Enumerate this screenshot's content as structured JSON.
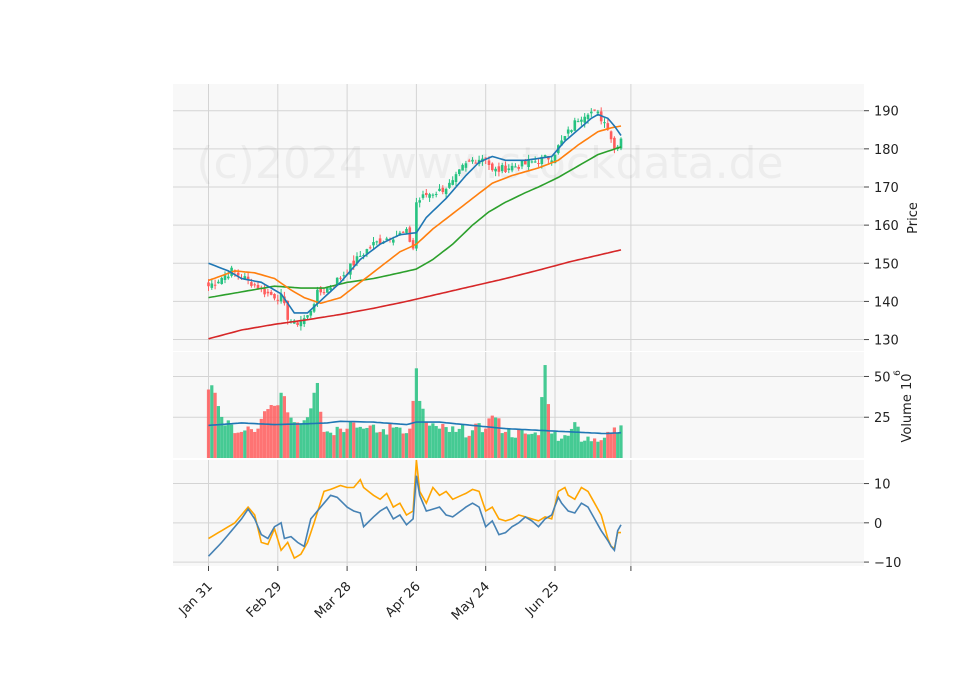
{
  "chart_data": {
    "type": "candlestick",
    "watermark": "(c)2024 www.stockdata.de",
    "x_ticks": [
      "Jan 31",
      "Feb 29",
      "Mar 28",
      "Apr 26",
      "May 24",
      "Jun 25"
    ],
    "x_tick_index": [
      0,
      21,
      42,
      63,
      84,
      105
    ],
    "n_bars": 126,
    "colors": {
      "up": "#26c281",
      "down": "#ff5c5c",
      "ma_fast": "#1f77b4",
      "ma_mid": "#ff7f0e",
      "ma_slow": "#2ca02c",
      "ma_long": "#d62728",
      "vol_ma": "#1f77b4",
      "macd": "#4682b4",
      "signal": "#ffa500"
    },
    "price_panel": {
      "ylabel": "Price",
      "ylim": [
        127,
        197
      ],
      "yticks": [
        130,
        140,
        150,
        160,
        170,
        180,
        190
      ],
      "anchors": [
        [
          0,
          144
        ],
        [
          7,
          148
        ],
        [
          13,
          145
        ],
        [
          18,
          142
        ],
        [
          22,
          141
        ],
        [
          24,
          136
        ],
        [
          26,
          134
        ],
        [
          30,
          136
        ],
        [
          33,
          142
        ],
        [
          37,
          144
        ],
        [
          42,
          148
        ],
        [
          46,
          152
        ],
        [
          50,
          155
        ],
        [
          55,
          157
        ],
        [
          60,
          158
        ],
        [
          62,
          154
        ],
        [
          63,
          166
        ],
        [
          66,
          168
        ],
        [
          70,
          169
        ],
        [
          74,
          171
        ],
        [
          77,
          175
        ],
        [
          80,
          177
        ],
        [
          84,
          178
        ],
        [
          86,
          174
        ],
        [
          90,
          175
        ],
        [
          96,
          176
        ],
        [
          100,
          177
        ],
        [
          104,
          178
        ],
        [
          108,
          183
        ],
        [
          112,
          188
        ],
        [
          115,
          190
        ],
        [
          118,
          189
        ],
        [
          121,
          186
        ],
        [
          123,
          180
        ],
        [
          125,
          183
        ]
      ],
      "ma_fast": [
        [
          0,
          150
        ],
        [
          6,
          148
        ],
        [
          10,
          146
        ],
        [
          16,
          145
        ],
        [
          22,
          142
        ],
        [
          26,
          137
        ],
        [
          30,
          137
        ],
        [
          35,
          141
        ],
        [
          40,
          145
        ],
        [
          46,
          151
        ],
        [
          52,
          155
        ],
        [
          58,
          157.5
        ],
        [
          63,
          158
        ],
        [
          66,
          162
        ],
        [
          72,
          167
        ],
        [
          78,
          173
        ],
        [
          82,
          176.5
        ],
        [
          86,
          178
        ],
        [
          90,
          177
        ],
        [
          96,
          177
        ],
        [
          100,
          177.5
        ],
        [
          104,
          178
        ],
        [
          108,
          182
        ],
        [
          112,
          185
        ],
        [
          116,
          188
        ],
        [
          118,
          189
        ],
        [
          121,
          188
        ],
        [
          123,
          186
        ],
        [
          125,
          183.5
        ]
      ],
      "ma_mid": [
        [
          0,
          145.5
        ],
        [
          8,
          148
        ],
        [
          14,
          147.5
        ],
        [
          20,
          146
        ],
        [
          25,
          143
        ],
        [
          29,
          141
        ],
        [
          34,
          139.5
        ],
        [
          40,
          141
        ],
        [
          46,
          145
        ],
        [
          52,
          149
        ],
        [
          58,
          153
        ],
        [
          63,
          155
        ],
        [
          68,
          159
        ],
        [
          74,
          163
        ],
        [
          80,
          167
        ],
        [
          86,
          171
        ],
        [
          92,
          173
        ],
        [
          100,
          175
        ],
        [
          106,
          177
        ],
        [
          112,
          181
        ],
        [
          118,
          184.5
        ],
        [
          122,
          185.5
        ],
        [
          125,
          186
        ]
      ],
      "ma_slow": [
        [
          0,
          141
        ],
        [
          10,
          142.5
        ],
        [
          20,
          144
        ],
        [
          28,
          143.5
        ],
        [
          35,
          143.5
        ],
        [
          42,
          145
        ],
        [
          50,
          146
        ],
        [
          58,
          147.5
        ],
        [
          63,
          148.5
        ],
        [
          68,
          151
        ],
        [
          74,
          155
        ],
        [
          80,
          160
        ],
        [
          85,
          163.5
        ],
        [
          90,
          166
        ],
        [
          96,
          168.5
        ],
        [
          100,
          170
        ],
        [
          106,
          172.5
        ],
        [
          112,
          175.5
        ],
        [
          118,
          178.5
        ],
        [
          125,
          180.5
        ]
      ],
      "ma_long": [
        [
          0,
          130.2
        ],
        [
          10,
          132.5
        ],
        [
          20,
          134
        ],
        [
          30,
          135.2
        ],
        [
          40,
          136.6
        ],
        [
          50,
          138.2
        ],
        [
          60,
          140
        ],
        [
          70,
          142
        ],
        [
          80,
          144
        ],
        [
          90,
          146
        ],
        [
          100,
          148.2
        ],
        [
          110,
          150.5
        ],
        [
          120,
          152.5
        ],
        [
          125,
          153.5
        ]
      ]
    },
    "volume_panel": {
      "ylabel": "Volume  10",
      "ylabel_exponent": "6",
      "ylim": [
        0,
        65
      ],
      "yticks": [
        25,
        50
      ],
      "vol_anchors": [
        [
          0,
          42
        ],
        [
          2,
          40
        ],
        [
          5,
          20
        ],
        [
          10,
          16
        ],
        [
          15,
          18
        ],
        [
          18,
          30
        ],
        [
          20,
          32
        ],
        [
          22,
          40
        ],
        [
          24,
          28
        ],
        [
          26,
          22
        ],
        [
          30,
          25
        ],
        [
          32,
          40
        ],
        [
          33,
          46
        ],
        [
          35,
          16
        ],
        [
          40,
          18
        ],
        [
          43,
          22
        ],
        [
          47,
          18
        ],
        [
          52,
          16
        ],
        [
          57,
          19
        ],
        [
          61,
          18
        ],
        [
          62,
          35
        ],
        [
          63,
          55
        ],
        [
          64,
          35
        ],
        [
          66,
          22
        ],
        [
          70,
          18
        ],
        [
          75,
          16
        ],
        [
          80,
          17
        ],
        [
          84,
          18
        ],
        [
          86,
          26
        ],
        [
          90,
          16
        ],
        [
          96,
          15
        ],
        [
          100,
          14
        ],
        [
          102,
          57
        ],
        [
          104,
          15
        ],
        [
          108,
          14
        ],
        [
          111,
          22
        ],
        [
          113,
          10
        ],
        [
          117,
          12
        ],
        [
          121,
          16
        ],
        [
          125,
          20
        ]
      ],
      "vol_ma": [
        [
          0,
          20
        ],
        [
          10,
          21.5
        ],
        [
          20,
          20.5
        ],
        [
          30,
          21
        ],
        [
          36,
          21.5
        ],
        [
          40,
          22.5
        ],
        [
          50,
          22
        ],
        [
          60,
          20.5
        ],
        [
          63,
          22
        ],
        [
          70,
          22
        ],
        [
          80,
          20
        ],
        [
          90,
          18
        ],
        [
          100,
          17
        ],
        [
          110,
          16
        ],
        [
          120,
          15
        ],
        [
          125,
          15.5
        ]
      ]
    },
    "macd_panel": {
      "ylim": [
        -11,
        16
      ],
      "yticks": [
        -10,
        0,
        10
      ],
      "macd": [
        [
          0,
          -8.5
        ],
        [
          4,
          -5
        ],
        [
          8,
          -1
        ],
        [
          10,
          1
        ],
        [
          12,
          3.5
        ],
        [
          14,
          1
        ],
        [
          16,
          -3
        ],
        [
          18,
          -4
        ],
        [
          20,
          -1
        ],
        [
          22,
          0
        ],
        [
          23,
          -4
        ],
        [
          25,
          -3.5
        ],
        [
          27,
          -5
        ],
        [
          29,
          -6
        ],
        [
          31,
          1
        ],
        [
          33,
          3
        ],
        [
          35,
          5
        ],
        [
          37,
          7
        ],
        [
          39,
          6.5
        ],
        [
          42,
          4
        ],
        [
          44,
          3
        ],
        [
          46,
          2.5
        ],
        [
          47,
          -1
        ],
        [
          50,
          1.5
        ],
        [
          52,
          3
        ],
        [
          54,
          4
        ],
        [
          56,
          1
        ],
        [
          58,
          2
        ],
        [
          60,
          -0.5
        ],
        [
          62,
          1
        ],
        [
          63,
          12
        ],
        [
          64,
          7
        ],
        [
          66,
          3
        ],
        [
          70,
          4
        ],
        [
          72,
          2
        ],
        [
          74,
          1.5
        ],
        [
          78,
          4
        ],
        [
          80,
          5
        ],
        [
          82,
          4
        ],
        [
          84,
          -1
        ],
        [
          86,
          0.5
        ],
        [
          88,
          -3
        ],
        [
          90,
          -2.5
        ],
        [
          92,
          -1
        ],
        [
          94,
          0
        ],
        [
          96,
          1.5
        ],
        [
          98,
          0.5
        ],
        [
          100,
          -1
        ],
        [
          102,
          1
        ],
        [
          104,
          2
        ],
        [
          106,
          6.5
        ],
        [
          107,
          5
        ],
        [
          109,
          3
        ],
        [
          111,
          2.5
        ],
        [
          113,
          5
        ],
        [
          115,
          4
        ],
        [
          117,
          1
        ],
        [
          119,
          -2
        ],
        [
          121,
          -4.5
        ],
        [
          122,
          -6
        ],
        [
          123,
          -7
        ],
        [
          124,
          -2
        ],
        [
          125,
          -0.5
        ]
      ],
      "signal": [
        [
          0,
          -4
        ],
        [
          4,
          -2
        ],
        [
          8,
          0
        ],
        [
          10,
          2
        ],
        [
          12,
          4
        ],
        [
          14,
          2
        ],
        [
          16,
          -5
        ],
        [
          18,
          -5.5
        ],
        [
          20,
          -1.5
        ],
        [
          22,
          -7
        ],
        [
          24,
          -5
        ],
        [
          26,
          -9
        ],
        [
          28,
          -8
        ],
        [
          30,
          -5
        ],
        [
          32,
          0
        ],
        [
          35,
          8
        ],
        [
          37,
          8.5
        ],
        [
          40,
          9.5
        ],
        [
          42,
          9
        ],
        [
          44,
          9
        ],
        [
          46,
          11
        ],
        [
          47,
          9
        ],
        [
          50,
          7
        ],
        [
          52,
          6
        ],
        [
          54,
          7.5
        ],
        [
          56,
          4
        ],
        [
          58,
          5
        ],
        [
          60,
          2
        ],
        [
          62,
          3
        ],
        [
          63,
          16
        ],
        [
          64,
          8
        ],
        [
          66,
          5
        ],
        [
          68,
          9
        ],
        [
          70,
          7
        ],
        [
          72,
          8
        ],
        [
          74,
          6
        ],
        [
          78,
          7.5
        ],
        [
          80,
          8.5
        ],
        [
          82,
          8
        ],
        [
          84,
          3
        ],
        [
          86,
          4
        ],
        [
          88,
          1
        ],
        [
          90,
          0.5
        ],
        [
          92,
          1
        ],
        [
          94,
          2
        ],
        [
          96,
          1.5
        ],
        [
          98,
          1
        ],
        [
          100,
          0.5
        ],
        [
          102,
          1.5
        ],
        [
          104,
          1
        ],
        [
          106,
          8
        ],
        [
          108,
          9
        ],
        [
          109,
          7
        ],
        [
          111,
          6
        ],
        [
          113,
          9
        ],
        [
          115,
          8
        ],
        [
          117,
          5
        ],
        [
          119,
          2
        ],
        [
          121,
          -4
        ],
        [
          122,
          -6
        ],
        [
          123,
          -6.5
        ],
        [
          124,
          -2.5
        ],
        [
          125,
          -2.5
        ]
      ]
    }
  }
}
